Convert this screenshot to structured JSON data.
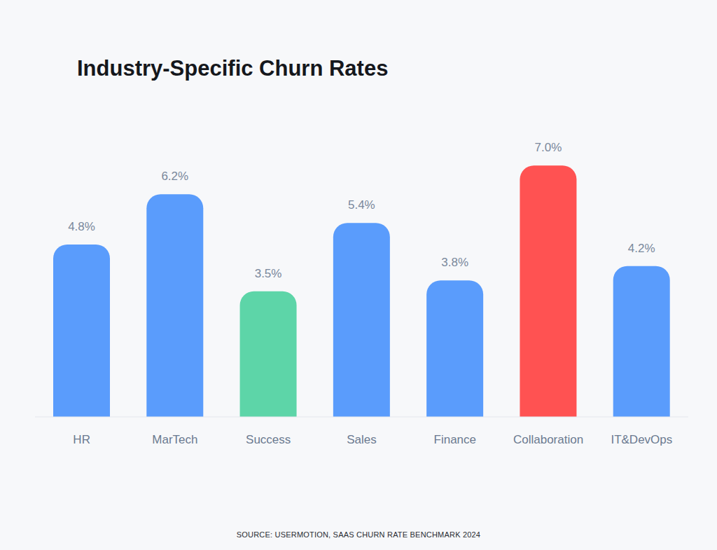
{
  "chart_data": {
    "type": "bar",
    "title": "Industry-Specific Churn Rates",
    "source": "SOURCE: USERMOTION, SAAS CHURN RATE BENCHMARK 2024",
    "categories": [
      "HR",
      "MarTech",
      "Success",
      "Sales",
      "Finance",
      "Collaboration",
      "IT&DevOps"
    ],
    "values": [
      4.8,
      6.2,
      3.5,
      5.4,
      3.8,
      7.0,
      4.2
    ],
    "value_labels": [
      "4.8%",
      "6.2%",
      "3.5%",
      "5.4%",
      "3.8%",
      "7.0%",
      "4.2%"
    ],
    "colors": [
      "#5a9cfc",
      "#5a9cfc",
      "#5dd5a8",
      "#5a9cfc",
      "#5a9cfc",
      "#ff5252",
      "#5a9cfc"
    ],
    "ylim": [
      0,
      8
    ],
    "yticks": [],
    "tick_labels": "x",
    "data_labels": true,
    "grid": false
  }
}
